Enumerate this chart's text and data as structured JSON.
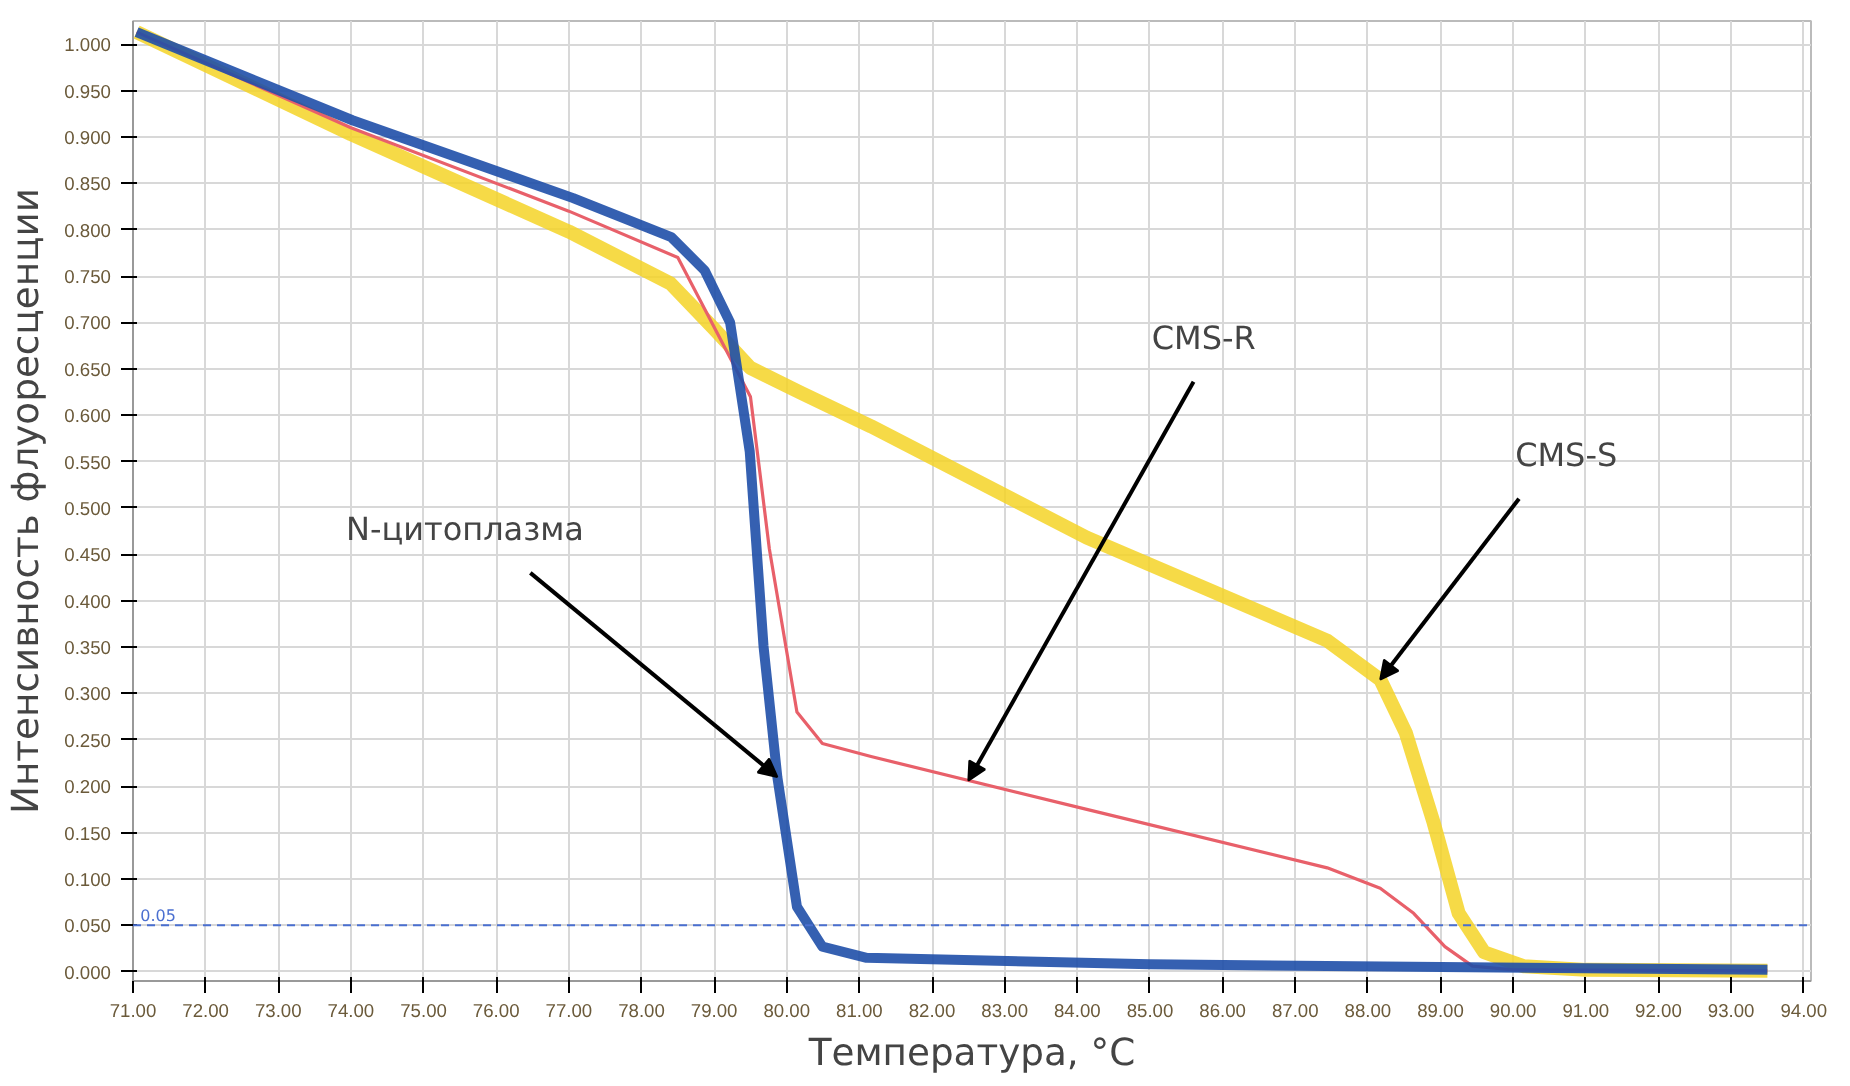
{
  "chart_data": {
    "type": "line",
    "xlabel": "Температура, °C",
    "ylabel": "Интенсивность флуоресценции",
    "xlim": [
      71,
      94.1
    ],
    "ylim": [
      -0.01,
      1.025
    ],
    "xticks": [
      {
        "value": 71,
        "label": "71.00"
      },
      {
        "value": 72,
        "label": "72.00"
      },
      {
        "value": 73,
        "label": "73.00"
      },
      {
        "value": 74,
        "label": "74.00"
      },
      {
        "value": 75,
        "label": "75.00"
      },
      {
        "value": 76,
        "label": "76.00"
      },
      {
        "value": 77,
        "label": "77.00"
      },
      {
        "value": 78,
        "label": "78.00"
      },
      {
        "value": 79,
        "label": "79.00"
      },
      {
        "value": 80,
        "label": "80.00"
      },
      {
        "value": 81,
        "label": "81.00"
      },
      {
        "value": 82,
        "label": "82.00"
      },
      {
        "value": 83,
        "label": "83.00"
      },
      {
        "value": 84,
        "label": "84.00"
      },
      {
        "value": 85,
        "label": "85.00"
      },
      {
        "value": 86,
        "label": "86.00"
      },
      {
        "value": 87,
        "label": "87.00"
      },
      {
        "value": 88,
        "label": "88.00"
      },
      {
        "value": 89,
        "label": "89.00"
      },
      {
        "value": 90,
        "label": "90.00"
      },
      {
        "value": 91,
        "label": "91.00"
      },
      {
        "value": 92,
        "label": "92.00"
      },
      {
        "value": 93,
        "label": "93.00"
      },
      {
        "value": 94,
        "label": "94.00"
      }
    ],
    "yticks": [
      {
        "value": 0,
        "label": "0.000"
      },
      {
        "value": 0.05,
        "label": "0.050"
      },
      {
        "value": 0.1,
        "label": "0.100"
      },
      {
        "value": 0.15,
        "label": "0.150"
      },
      {
        "value": 0.2,
        "label": "0.200"
      },
      {
        "value": 0.25,
        "label": "0.250"
      },
      {
        "value": 0.3,
        "label": "0.300"
      },
      {
        "value": 0.35,
        "label": "0.350"
      },
      {
        "value": 0.4,
        "label": "0.400"
      },
      {
        "value": 0.45,
        "label": "0.450"
      },
      {
        "value": 0.5,
        "label": "0.500"
      },
      {
        "value": 0.55,
        "label": "0.550"
      },
      {
        "value": 0.6,
        "label": "0.600"
      },
      {
        "value": 0.65,
        "label": "0.650"
      },
      {
        "value": 0.7,
        "label": "0.700"
      },
      {
        "value": 0.75,
        "label": "0.750"
      },
      {
        "value": 0.8,
        "label": "0.800"
      },
      {
        "value": 0.85,
        "label": "0.850"
      },
      {
        "value": 0.9,
        "label": "0.900"
      },
      {
        "value": 0.95,
        "label": "0.950"
      },
      {
        "value": 1,
        "label": "1.000"
      }
    ],
    "grid": true,
    "series": [
      {
        "color": "#f5d327",
        "x": [
          71.05,
          74,
          77,
          78.4,
          79,
          79.5,
          80.2,
          81.16,
          84.13,
          87.44,
          88.17,
          88.52,
          88.9,
          89.25,
          89.6,
          90.14,
          91,
          93.5
        ],
        "values": [
          1.013,
          0.903,
          0.798,
          0.742,
          0.693,
          0.651,
          0.624,
          0.588,
          0.468,
          0.357,
          0.315,
          0.258,
          0.162,
          0.063,
          0.021,
          0.006,
          0.002,
          0.001
        ]
      },
      {
        "color": "#e8606a",
        "x": [
          71.05,
          74,
          77,
          78.5,
          79.5,
          79.76,
          80.14,
          80.49,
          81.16,
          84.13,
          87.44,
          88.17,
          88.63,
          89.06,
          89.44,
          90,
          93.5
        ],
        "values": [
          1.013,
          0.91,
          0.82,
          0.77,
          0.62,
          0.456,
          0.28,
          0.246,
          0.232,
          0.175,
          0.112,
          0.09,
          0.063,
          0.027,
          0.006,
          0.002,
          0.001
        ]
      },
      {
        "color": "#1f4fa8",
        "x": [
          71.05,
          74.02,
          77.06,
          78.41,
          78.87,
          79.22,
          79.49,
          79.68,
          79.87,
          80.14,
          80.49,
          81.1,
          85,
          93.5
        ],
        "values": [
          1.013,
          0.918,
          0.834,
          0.792,
          0.756,
          0.7,
          0.561,
          0.351,
          0.21,
          0.07,
          0.027,
          0.015,
          0.008,
          0.002
        ]
      }
    ],
    "ref_lines": [
      {
        "axis": "y",
        "value": 0.05,
        "label": "0.05",
        "color": "#4a6fd0",
        "line_style": "dashed"
      }
    ],
    "annotations": [
      {
        "text": "N-цитоплазма",
        "x": 79.87,
        "y": 0.21
      },
      {
        "text": "CMS-R",
        "x": 82.5,
        "y": 0.206
      },
      {
        "text": "CMS-S",
        "x": 88.17,
        "y": 0.315
      }
    ]
  }
}
